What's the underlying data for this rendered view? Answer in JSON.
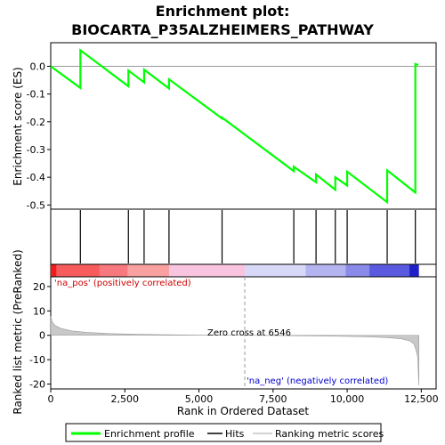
{
  "chart_data": {
    "type": "line",
    "title_line1": "Enrichment plot:",
    "title_line2": "BIOCARTA_P35ALZHEIMERS_PATHWAY",
    "x_label": "Rank in Ordered Dataset",
    "es_y_label": "Enrichment score (ES)",
    "metric_y_label": "Ranked list metric (PreRanked)",
    "x_range": [
      0,
      13000
    ],
    "x_ticks": [
      0,
      2500,
      5000,
      7500,
      10000,
      12500
    ],
    "x_tick_labels": [
      "0",
      "2,500",
      "5,000",
      "7,500",
      "10,000",
      "12,500"
    ],
    "es_range": [
      -0.515,
      0.085
    ],
    "es_ticks": [
      0.0,
      -0.1,
      -0.2,
      -0.3,
      -0.4,
      -0.5
    ],
    "es_tick_labels": [
      "0.0",
      "-0.1",
      "-0.2",
      "-0.3",
      "-0.4",
      "-0.5"
    ],
    "metric_range": [
      -22,
      24
    ],
    "metric_ticks": [
      20,
      10,
      0,
      -10,
      -20
    ],
    "metric_tick_labels": [
      "20",
      "10",
      "0",
      "-10",
      "-20"
    ],
    "es_points": [
      [
        0,
        0.0
      ],
      [
        1000,
        -0.078
      ],
      [
        1000,
        0.058
      ],
      [
        2620,
        -0.072
      ],
      [
        2620,
        -0.015
      ],
      [
        3150,
        -0.058
      ],
      [
        3150,
        -0.012
      ],
      [
        3990,
        -0.08
      ],
      [
        3990,
        -0.047
      ],
      [
        5780,
        -0.188
      ],
      [
        5780,
        -0.185
      ],
      [
        8200,
        -0.378
      ],
      [
        8200,
        -0.362
      ],
      [
        8950,
        -0.418
      ],
      [
        8950,
        -0.39
      ],
      [
        9600,
        -0.445
      ],
      [
        9600,
        -0.4
      ],
      [
        10000,
        -0.43
      ],
      [
        10000,
        -0.38
      ],
      [
        11350,
        -0.49
      ],
      [
        11350,
        -0.375
      ],
      [
        12300,
        -0.455
      ],
      [
        12300,
        0.008
      ],
      [
        12400,
        0.005
      ]
    ],
    "hits": [
      1000,
      2620,
      3150,
      3990,
      5780,
      8200,
      8950,
      9600,
      10000,
      11350,
      12300
    ],
    "metric_curve": [
      [
        0,
        7.8
      ],
      [
        50,
        5.5
      ],
      [
        150,
        4.0
      ],
      [
        350,
        2.8
      ],
      [
        700,
        1.8
      ],
      [
        1200,
        1.2
      ],
      [
        2000,
        0.7
      ],
      [
        3000,
        0.4
      ],
      [
        4000,
        0.2
      ],
      [
        5000,
        0.08
      ],
      [
        6000,
        0.02
      ],
      [
        6546,
        0.0
      ],
      [
        7500,
        -0.08
      ],
      [
        8500,
        -0.2
      ],
      [
        9500,
        -0.35
      ],
      [
        10500,
        -0.6
      ],
      [
        11300,
        -0.9
      ],
      [
        11800,
        -1.4
      ],
      [
        12100,
        -2.2
      ],
      [
        12250,
        -3.5
      ],
      [
        12320,
        -6.0
      ],
      [
        12380,
        -9.0
      ],
      [
        12420,
        -20.5
      ]
    ],
    "colorbar_segments": [
      {
        "x0": 0,
        "x1": 200,
        "color": "#ee1c1c"
      },
      {
        "x0": 200,
        "x1": 1650,
        "color": "#f85b5b"
      },
      {
        "x0": 1650,
        "x1": 2600,
        "color": "#f8787f"
      },
      {
        "x0": 2600,
        "x1": 4000,
        "color": "#f9a0a0"
      },
      {
        "x0": 4000,
        "x1": 6546,
        "color": "#f9c4e0"
      },
      {
        "x0": 6546,
        "x1": 8600,
        "color": "#d8d8f8"
      },
      {
        "x0": 8600,
        "x1": 9950,
        "color": "#b4b4f0"
      },
      {
        "x0": 9950,
        "x1": 10750,
        "color": "#8a8ae8"
      },
      {
        "x0": 10750,
        "x1": 12100,
        "color": "#5a5ae0"
      },
      {
        "x0": 12100,
        "x1": 12420,
        "color": "#2020c8"
      }
    ],
    "zero_cross_label": "Zero cross at 6546",
    "zero_cross": 6546,
    "pos_label": "'na_pos' (positively correlated)",
    "neg_label": "'na_neg' (negatively correlated)",
    "legend": [
      "Enrichment profile",
      "Hits",
      "Ranking metric scores"
    ],
    "colors": {
      "es_line": "#00ff00",
      "pos_label": "#cc0000",
      "neg_label": "#0000cc",
      "metric": "#aaaaaa"
    }
  }
}
